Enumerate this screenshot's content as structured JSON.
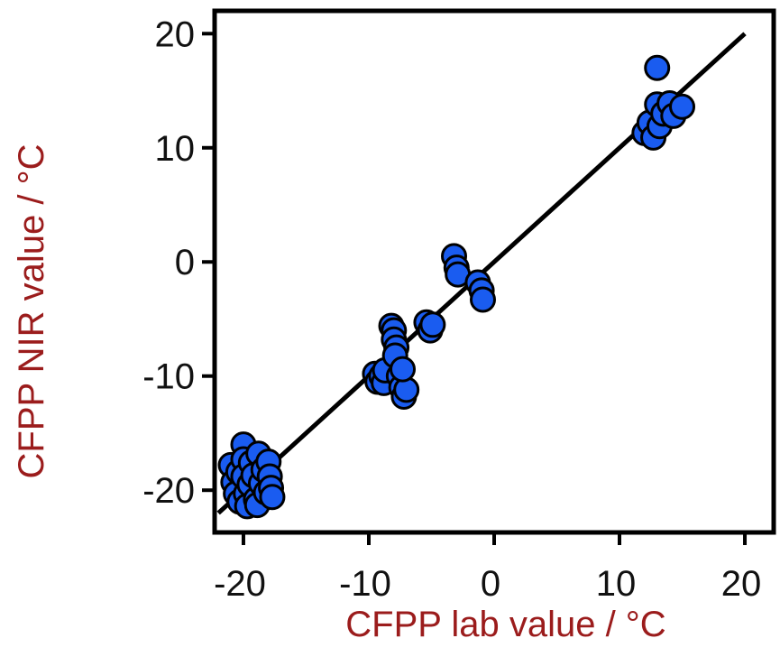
{
  "chart_data": {
    "type": "scatter",
    "title": "",
    "xlabel": "CFPP lab value / °C",
    "ylabel": "CFPP NIR value / °C",
    "xlim": [
      -22.3,
      22.3
    ],
    "ylim": [
      -23.7,
      22.0
    ],
    "x_ticks": [
      -20,
      -10,
      0,
      10,
      20
    ],
    "y_ticks": [
      20,
      10,
      0,
      -10,
      -20
    ],
    "x_tick_labels": [
      "-20",
      "-10",
      "0",
      "10",
      "20"
    ],
    "y_tick_labels": [
      "20",
      "10",
      "0",
      "-10",
      "-20"
    ],
    "grid": false,
    "legend": "none",
    "colors": {
      "point_fill": "#1a5cf0",
      "point_stroke": "#000000",
      "line": "#000000",
      "axis_title": "#9b1c1c",
      "frame": "#000000"
    },
    "fit_line": {
      "x": [
        -22,
        20
      ],
      "y": [
        -22,
        20
      ]
    },
    "series": [
      {
        "points": [
          [
            -21,
            -17.8
          ],
          [
            -20.8,
            -19.3
          ],
          [
            -20.6,
            -20.3
          ],
          [
            -20.4,
            -18.4
          ],
          [
            -20.3,
            -21.0
          ],
          [
            -20.0,
            -16.0
          ],
          [
            -20.0,
            -17.3
          ],
          [
            -20.0,
            -18.8
          ],
          [
            -19.8,
            -20.3
          ],
          [
            -19.7,
            -21.4
          ],
          [
            -19.5,
            -19.5
          ],
          [
            -19.4,
            -17.6
          ],
          [
            -19.2,
            -18.7
          ],
          [
            -19.0,
            -20.8
          ],
          [
            -18.9,
            -21.3
          ],
          [
            -18.8,
            -16.8
          ],
          [
            -18.6,
            -19.4
          ],
          [
            -18.4,
            -18.2
          ],
          [
            -18.2,
            -20.2
          ],
          [
            -18.0,
            -17.5
          ],
          [
            -17.9,
            -18.8
          ],
          [
            -17.8,
            -19.8
          ],
          [
            -17.7,
            -20.6
          ],
          [
            -9.5,
            -9.8
          ],
          [
            -9.3,
            -10.5
          ],
          [
            -9.0,
            -10.0
          ],
          [
            -8.8,
            -10.6
          ],
          [
            -8.7,
            -9.5
          ],
          [
            -8.2,
            -5.6
          ],
          [
            -8.0,
            -6.0
          ],
          [
            -8.0,
            -6.8
          ],
          [
            -7.8,
            -7.5
          ],
          [
            -7.9,
            -8.2
          ],
          [
            -7.6,
            -10.0
          ],
          [
            -7.4,
            -11.0
          ],
          [
            -7.2,
            -11.8
          ],
          [
            -7.0,
            -11.2
          ],
          [
            -7.3,
            -9.4
          ],
          [
            -5.4,
            -5.3
          ],
          [
            -5.1,
            -6.0
          ],
          [
            -4.9,
            -5.5
          ],
          [
            -3.2,
            0.5
          ],
          [
            -3.0,
            -0.5
          ],
          [
            -2.9,
            -1.1
          ],
          [
            -1.3,
            -1.8
          ],
          [
            -1.0,
            -2.5
          ],
          [
            -0.9,
            -3.3
          ],
          [
            12.0,
            11.3
          ],
          [
            12.4,
            12.2
          ],
          [
            12.7,
            10.9
          ],
          [
            13.0,
            17.0
          ],
          [
            13.0,
            13.8
          ],
          [
            13.2,
            11.9
          ],
          [
            13.5,
            13.0
          ],
          [
            14.0,
            13.9
          ],
          [
            14.3,
            12.8
          ],
          [
            15.0,
            13.6
          ]
        ]
      }
    ]
  }
}
